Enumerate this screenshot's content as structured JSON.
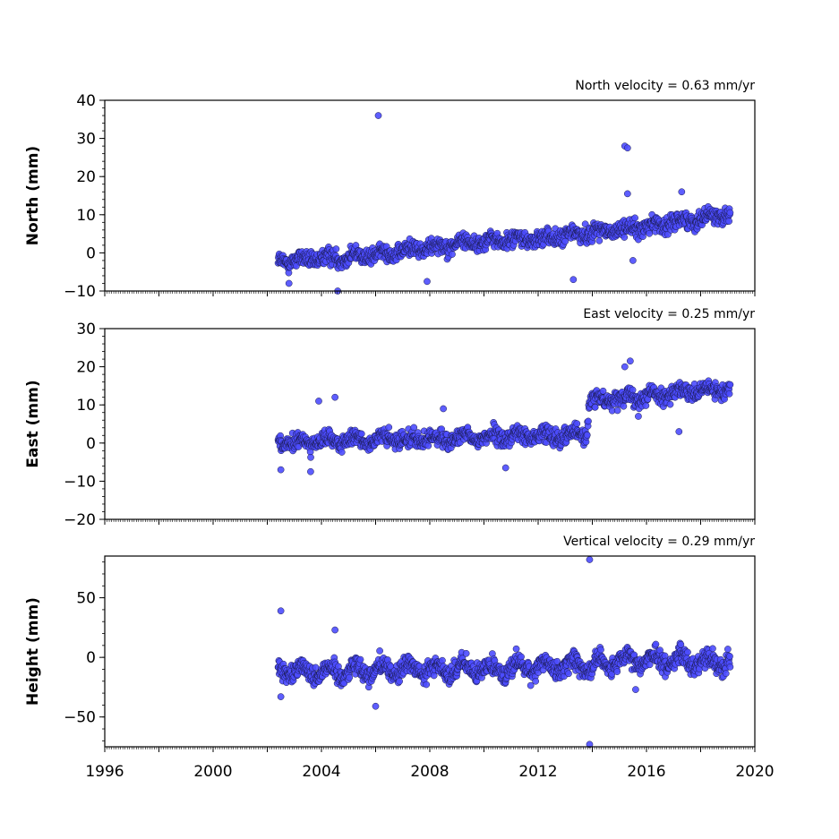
{
  "chart_data": [
    {
      "type": "scatter",
      "title": "North velocity = 0.63 mm/yr",
      "xlabel": "",
      "ylabel": "North (mm)",
      "xlim": [
        1996,
        2020
      ],
      "ylim": [
        -10,
        40
      ],
      "yticks": [
        -10,
        0,
        10,
        20,
        30,
        40
      ],
      "yticklabels": [
        "−10",
        "0",
        "10",
        "20",
        "30",
        "40"
      ],
      "point_color": "#4d4dff",
      "series": [
        {
          "description": "daily position estimates; time series begins mid-2002 and ends early 2019",
          "start_year": 2002.4,
          "end_year": 2019.1,
          "x": [
            2002.4,
            2003.0,
            2004.0,
            2005.0,
            2006.0,
            2006.6,
            2007.0,
            2008.0,
            2009.0,
            2010.0,
            2011.0,
            2012.0,
            2013.0,
            2014.0,
            2015.0,
            2016.0,
            2017.0,
            2018.0,
            2019.0
          ],
          "y": [
            -2,
            -2,
            -1.5,
            -1,
            -0.5,
            0,
            0.5,
            1.5,
            2.5,
            3,
            3.5,
            3.5,
            4.5,
            5.5,
            6,
            7,
            8,
            9,
            10.5
          ],
          "outliers": [
            [
              2006.1,
              36
            ],
            [
              2015.2,
              28
            ],
            [
              2015.3,
              27.5
            ],
            [
              2015.3,
              15.5
            ],
            [
              2017.3,
              16
            ],
            [
              2004.6,
              -10
            ],
            [
              2007.9,
              -7.5
            ],
            [
              2013.3,
              -7
            ],
            [
              2002.8,
              -8
            ],
            [
              2015.5,
              -2
            ]
          ]
        }
      ]
    },
    {
      "type": "scatter",
      "title": "East velocity = 0.25 mm/yr",
      "xlabel": "",
      "ylabel": "East (mm)",
      "xlim": [
        1996,
        2020
      ],
      "ylim": [
        -20,
        30
      ],
      "yticks": [
        -20,
        -10,
        0,
        10,
        20,
        30
      ],
      "yticklabels": [
        "−20",
        "−10",
        "0",
        "10",
        "20",
        "30"
      ],
      "point_color": "#4d4dff",
      "series": [
        {
          "description": "daily position estimates with an offset of about +10 mm near 2013.9",
          "start_year": 2002.4,
          "end_year": 2019.1,
          "x": [
            2002.4,
            2003.0,
            2004.0,
            2005.0,
            2006.0,
            2006.6,
            2008.0,
            2010.0,
            2012.0,
            2013.8,
            2013.9,
            2015.0,
            2016.0,
            2017.0,
            2018.0,
            2019.0
          ],
          "y": [
            0,
            0,
            0.5,
            0.5,
            1,
            1,
            1,
            1.5,
            2,
            2.5,
            11,
            12,
            12.5,
            13,
            13.5,
            14
          ],
          "outliers": [
            [
              2003.9,
              11
            ],
            [
              2004.5,
              12
            ],
            [
              2008.5,
              9
            ],
            [
              2015.4,
              21.5
            ],
            [
              2015.2,
              20
            ],
            [
              2017.2,
              3
            ],
            [
              2010.8,
              -6.5
            ],
            [
              2003.6,
              -7.5
            ],
            [
              2002.5,
              -7
            ],
            [
              2015.7,
              7
            ]
          ]
        }
      ]
    },
    {
      "type": "scatter",
      "title": "Vertical velocity = 0.29 mm/yr",
      "xlabel": "",
      "ylabel": "Height (mm)",
      "xlim": [
        1996,
        2020
      ],
      "ylim": [
        -75,
        85
      ],
      "yticks": [
        -50,
        0,
        50
      ],
      "yticklabels": [
        "−50",
        "0",
        "50"
      ],
      "xticks": [
        1996,
        1998,
        2000,
        2002,
        2004,
        2006,
        2008,
        2010,
        2012,
        2014,
        2016,
        2018,
        2020
      ],
      "xticklabels": [
        "1996",
        "",
        "2000",
        "",
        "2004",
        "",
        "2008",
        "",
        "2012",
        "",
        "2016",
        "",
        "2020"
      ],
      "point_color": "#4d4dff",
      "series": [
        {
          "description": "daily position estimates with annual oscillation",
          "start_year": 2002.4,
          "end_year": 2019.1,
          "x": [
            2002.4,
            2004.0,
            2006.0,
            2008.0,
            2010.0,
            2012.0,
            2014.0,
            2016.0,
            2018.0,
            2019.0
          ],
          "y": [
            -10,
            -12,
            -10,
            -10,
            -10,
            -8,
            -6,
            -2,
            -3,
            -4
          ],
          "outliers": [
            [
              2002.5,
              39
            ],
            [
              2004.5,
              23
            ],
            [
              2013.9,
              82
            ],
            [
              2013.9,
              -73
            ],
            [
              2006.0,
              -41
            ],
            [
              2002.5,
              -33
            ],
            [
              2015.6,
              -27
            ]
          ]
        }
      ]
    }
  ]
}
